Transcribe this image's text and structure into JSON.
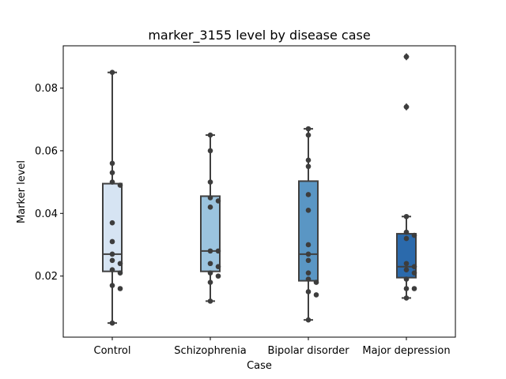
{
  "chart_data": {
    "type": "box",
    "title": "marker_3155 level by disease case",
    "xlabel": "Case",
    "ylabel": "Marker level",
    "categories": [
      "Control",
      "Schizophrenia",
      "Bipolar disorder",
      "Major depression"
    ],
    "ylim": [
      0.0005,
      0.0935
    ],
    "yticks": [
      0.02,
      0.04,
      0.06,
      0.08
    ],
    "ytick_labels": [
      "0.02",
      "0.04",
      "0.06",
      "0.08"
    ],
    "grid": false,
    "colors": [
      "#d6e4f3",
      "#9bc4df",
      "#5a96c4",
      "#2b6aac"
    ],
    "box_edge_color": "#404040",
    "point_color": "#3d3d3d",
    "boxes": [
      {
        "name": "Control",
        "whisker_low": 0.005,
        "q1": 0.0215,
        "median": 0.027,
        "q3": 0.0495,
        "whisker_high": 0.085,
        "outliers": []
      },
      {
        "name": "Schizophrenia",
        "whisker_low": 0.012,
        "q1": 0.0215,
        "median": 0.028,
        "q3": 0.0455,
        "whisker_high": 0.065,
        "outliers": []
      },
      {
        "name": "Bipolar disorder",
        "whisker_low": 0.006,
        "q1": 0.0185,
        "median": 0.027,
        "q3": 0.0503,
        "whisker_high": 0.067,
        "outliers": []
      },
      {
        "name": "Major depression",
        "whisker_low": 0.013,
        "q1": 0.0195,
        "median": 0.023,
        "q3": 0.0335,
        "whisker_high": 0.039,
        "outliers": [
          0.074,
          0.09
        ]
      }
    ],
    "points": [
      [
        0.085,
        0.056,
        0.053,
        0.05,
        0.049,
        0.037,
        0.031,
        0.027,
        0.025,
        0.024,
        0.022,
        0.021,
        0.017,
        0.016,
        0.005
      ],
      [
        0.065,
        0.06,
        0.05,
        0.045,
        0.044,
        0.042,
        0.028,
        0.028,
        0.024,
        0.023,
        0.021,
        0.02,
        0.018,
        0.012
      ],
      [
        0.067,
        0.065,
        0.057,
        0.055,
        0.046,
        0.041,
        0.03,
        0.027,
        0.025,
        0.021,
        0.019,
        0.018,
        0.015,
        0.014,
        0.006
      ],
      [
        0.09,
        0.074,
        0.039,
        0.034,
        0.033,
        0.032,
        0.024,
        0.023,
        0.022,
        0.021,
        0.019,
        0.016,
        0.016,
        0.013
      ]
    ]
  }
}
